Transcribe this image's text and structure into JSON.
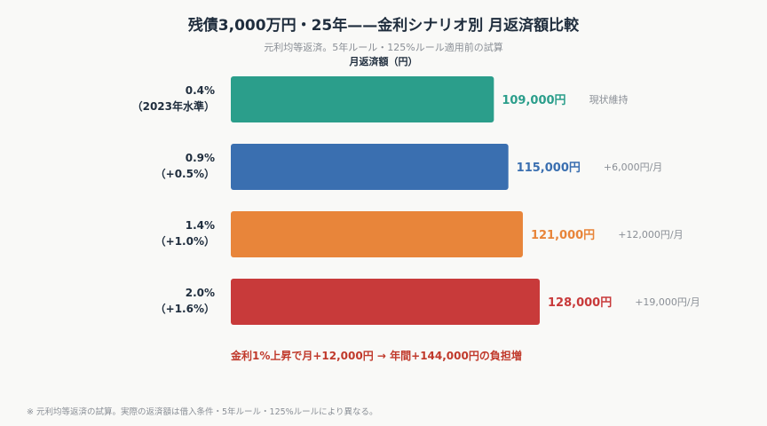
{
  "header": {
    "title": "残債3,000万円・25年——金利シナリオ別 月返済額比較",
    "subtitle": "元利均等返済。5年ルール・125%ルール適用前の試算",
    "axis_title": "月返済額（円）"
  },
  "chart_data": {
    "type": "bar",
    "orientation": "horizontal",
    "unit": "円",
    "xlim": [
      0,
      140000
    ],
    "categories": [
      [
        "0.4%",
        "（2023年水準）"
      ],
      [
        "0.9%",
        "（+0.5%）"
      ],
      [
        "1.4%",
        "（+1.0%）"
      ],
      [
        "2.0%",
        "（+1.6%）"
      ]
    ],
    "values": [
      109000,
      115000,
      121000,
      128000
    ],
    "value_labels": [
      "109,000円",
      "115,000円",
      "121,000円",
      "128,000円"
    ],
    "delta_labels": [
      "現状維持",
      "+6,000円/月",
      "+12,000円/月",
      "+19,000円/月"
    ],
    "colors": [
      "#2b9e8b",
      "#3a6fb0",
      "#e8853a",
      "#c83a3a"
    ],
    "grid": false,
    "legend": "none"
  },
  "summary": "金利1%上昇で月+12,000円 → 年間+144,000円の負担増",
  "footnote": "※ 元利均等返済の試算。実際の返済額は借入条件・5年ルール・125%ルールにより異なる。"
}
